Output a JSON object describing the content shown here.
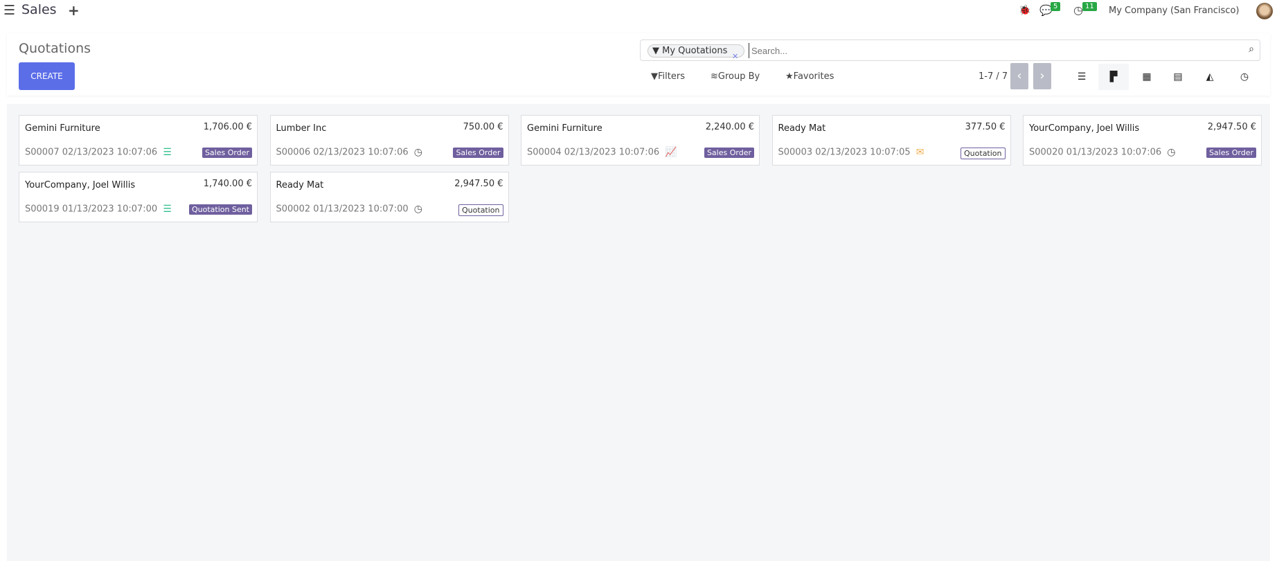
{
  "nav": {
    "app": "Sales",
    "chat_count": "5",
    "activity_count": "11",
    "company": "My Company (San Francisco)"
  },
  "control": {
    "title": "Quotations",
    "create": "CREATE",
    "facet": "My Quotations",
    "search_placeholder": "Search...",
    "filters": "Filters",
    "group_by": "Group By",
    "favorites": "Favorites",
    "pager": "1-7 / 7"
  },
  "colors": {
    "primary": "#5b6ee8",
    "tag": "#6f5f9e",
    "badge": "#28a745",
    "green_icon": "#2fbf8a",
    "orange_icon": "#f0ad4e"
  },
  "cards": [
    {
      "name": "Gemini Furniture",
      "amount": "1,706.00 €",
      "ref": "S00007 02/13/2023 10:07:06",
      "icon": "tasks-icon",
      "status": "Sales Order",
      "outline": false
    },
    {
      "name": "Lumber Inc",
      "amount": "750.00 €",
      "ref": "S00006 02/13/2023 10:07:06",
      "icon": "clock-icon",
      "status": "Sales Order",
      "outline": false
    },
    {
      "name": "Gemini Furniture",
      "amount": "2,240.00 €",
      "ref": "S00004 02/13/2023 10:07:06",
      "icon": "chart-line-icon",
      "status": "Sales Order",
      "outline": false
    },
    {
      "name": "Ready Mat",
      "amount": "377.50 €",
      "ref": "S00003 02/13/2023 10:07:05",
      "icon": "envelope-icon",
      "status": "Quotation",
      "outline": true
    },
    {
      "name": "YourCompany, Joel Willis",
      "amount": "2,947.50 €",
      "ref": "S00020 01/13/2023 10:07:06",
      "icon": "clock-icon",
      "status": "Sales Order",
      "outline": false
    },
    {
      "name": "YourCompany, Joel Willis",
      "amount": "1,740.00 €",
      "ref": "S00019 01/13/2023 10:07:00",
      "icon": "tasks-icon",
      "status": "Quotation Sent",
      "outline": false
    },
    {
      "name": "Ready Mat",
      "amount": "2,947.50 €",
      "ref": "S00002 01/13/2023 10:07:00",
      "icon": "clock-icon",
      "status": "Quotation",
      "outline": true
    }
  ]
}
